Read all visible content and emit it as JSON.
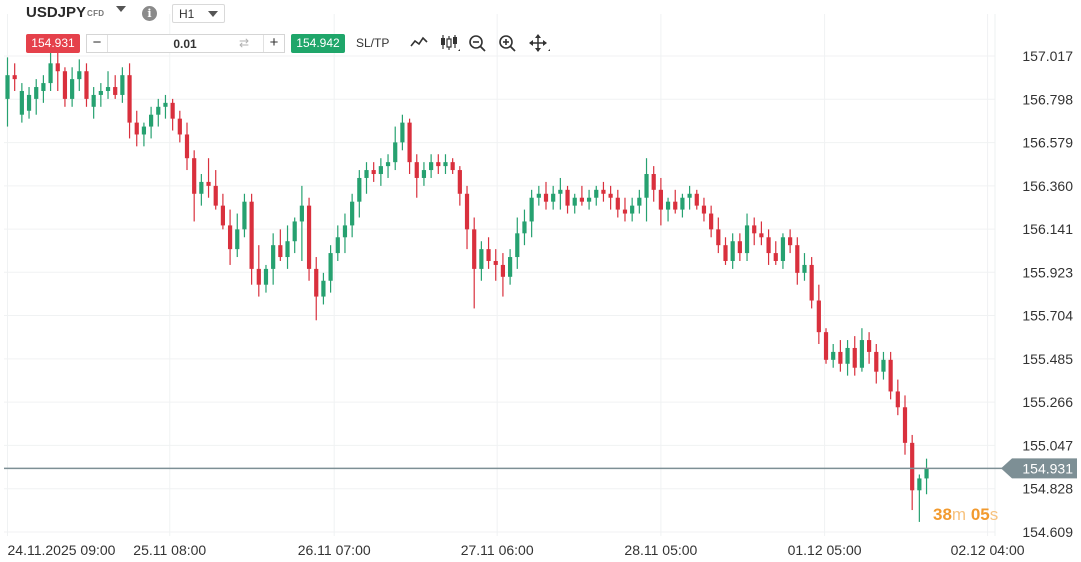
{
  "toolbar": {
    "symbol": "USDJPY",
    "symbol_type": "CFD",
    "timeframe": "H1"
  },
  "trade": {
    "sell_price": "154.931",
    "buy_price": "154.942",
    "quantity": "0.01",
    "minus_label": "−",
    "plus_label": "+",
    "sltp_label": "SL/TP"
  },
  "icons": [
    "chevron-down-icon",
    "info-icon",
    "line-chart-icon",
    "candlestick-icon",
    "zoom-out-icon",
    "zoom-in-icon",
    "move-icon",
    "swap-icon"
  ],
  "colors": {
    "bull": "#26a170",
    "bear": "#d9303d",
    "sell": "#e5414b",
    "buy": "#1fa66a",
    "price_line": "#7d8f95",
    "countdown": "#f29a2e"
  },
  "countdown": {
    "minutes": "38",
    "minutes_unit": "m",
    "seconds": "05",
    "seconds_unit": "s"
  },
  "chart_data": {
    "type": "candlestick",
    "current_price": 154.931,
    "y_ticks": [
      "157.017",
      "156.798",
      "156.579",
      "156.360",
      "156.141",
      "155.923",
      "155.704",
      "155.485",
      "155.266",
      "155.047",
      "154.828",
      "154.609"
    ],
    "x_ticks": [
      "24.11.2025 09:00",
      "25.11 08:00",
      "26.11 07:00",
      "27.11 06:00",
      "28.11 05:00",
      "01.12 05:00",
      "02.12 04:00"
    ],
    "ylim": [
      154.609,
      157.017
    ],
    "grid": true,
    "candles": [
      [
        156.8,
        157.01,
        156.66,
        156.92
      ],
      [
        156.92,
        156.98,
        156.84,
        156.9
      ],
      [
        156.72,
        156.88,
        156.68,
        156.84
      ],
      [
        156.74,
        156.86,
        156.7,
        156.82
      ],
      [
        156.8,
        156.9,
        156.72,
        156.86
      ],
      [
        156.84,
        156.92,
        156.78,
        156.88
      ],
      [
        156.88,
        157.06,
        156.84,
        156.98
      ],
      [
        156.98,
        157.08,
        156.84,
        156.94
      ],
      [
        156.94,
        156.96,
        156.76,
        156.8
      ],
      [
        156.8,
        156.96,
        156.76,
        156.9
      ],
      [
        156.9,
        157.0,
        156.84,
        156.94
      ],
      [
        156.94,
        156.98,
        156.76,
        156.8
      ],
      [
        156.76,
        156.86,
        156.7,
        156.82
      ],
      [
        156.82,
        156.88,
        156.76,
        156.84
      ],
      [
        156.84,
        156.94,
        156.8,
        156.86
      ],
      [
        156.86,
        156.92,
        156.8,
        156.82
      ],
      [
        156.82,
        156.96,
        156.78,
        156.92
      ],
      [
        156.92,
        156.98,
        156.6,
        156.68
      ],
      [
        156.68,
        156.74,
        156.56,
        156.62
      ],
      [
        156.62,
        156.68,
        156.56,
        156.66
      ],
      [
        156.66,
        156.76,
        156.6,
        156.72
      ],
      [
        156.72,
        156.8,
        156.66,
        156.76
      ],
      [
        156.76,
        156.82,
        156.7,
        156.78
      ],
      [
        156.78,
        156.8,
        156.64,
        156.7
      ],
      [
        156.7,
        156.74,
        156.58,
        156.62
      ],
      [
        156.62,
        156.68,
        156.44,
        156.5
      ],
      [
        156.5,
        156.54,
        156.18,
        156.32
      ],
      [
        156.32,
        156.42,
        156.26,
        156.38
      ],
      [
        156.38,
        156.5,
        156.3,
        156.36
      ],
      [
        156.36,
        156.44,
        156.24,
        156.26
      ],
      [
        156.26,
        156.32,
        156.14,
        156.16
      ],
      [
        156.16,
        156.24,
        155.96,
        156.04
      ],
      [
        156.04,
        156.22,
        156.0,
        156.14
      ],
      [
        156.14,
        156.32,
        156.1,
        156.28
      ],
      [
        156.28,
        156.32,
        155.86,
        155.94
      ],
      [
        155.94,
        156.06,
        155.8,
        155.86
      ],
      [
        155.86,
        155.96,
        155.82,
        155.94
      ],
      [
        155.94,
        156.12,
        155.86,
        156.06
      ],
      [
        156.06,
        156.14,
        155.98,
        156.0
      ],
      [
        156.0,
        156.16,
        155.94,
        156.08
      ],
      [
        156.08,
        156.2,
        156.02,
        156.18
      ],
      [
        156.18,
        156.36,
        155.98,
        156.26
      ],
      [
        156.26,
        156.3,
        155.88,
        155.94
      ],
      [
        155.94,
        156.0,
        155.68,
        155.8
      ],
      [
        155.8,
        155.92,
        155.76,
        155.88
      ],
      [
        155.88,
        156.06,
        155.82,
        156.02
      ],
      [
        156.02,
        156.16,
        155.98,
        156.1
      ],
      [
        156.1,
        156.22,
        156.02,
        156.16
      ],
      [
        156.16,
        156.32,
        156.1,
        156.28
      ],
      [
        156.28,
        156.44,
        156.2,
        156.4
      ],
      [
        156.4,
        156.48,
        156.32,
        156.44
      ],
      [
        156.44,
        156.48,
        156.38,
        156.42
      ],
      [
        156.42,
        156.5,
        156.36,
        156.46
      ],
      [
        156.46,
        156.52,
        156.4,
        156.48
      ],
      [
        156.48,
        156.66,
        156.44,
        156.58
      ],
      [
        156.58,
        156.72,
        156.54,
        156.68
      ],
      [
        156.68,
        156.7,
        156.42,
        156.48
      ],
      [
        156.48,
        156.52,
        156.3,
        156.4
      ],
      [
        156.4,
        156.48,
        156.36,
        156.44
      ],
      [
        156.44,
        156.52,
        156.4,
        156.48
      ],
      [
        156.48,
        156.52,
        156.42,
        156.46
      ],
      [
        156.46,
        156.52,
        156.42,
        156.48
      ],
      [
        156.48,
        156.5,
        156.42,
        156.44
      ],
      [
        156.44,
        156.46,
        156.26,
        156.32
      ],
      [
        156.32,
        156.36,
        156.04,
        156.14
      ],
      [
        156.14,
        156.2,
        155.74,
        155.94
      ],
      [
        155.94,
        156.08,
        155.88,
        156.04
      ],
      [
        156.04,
        156.1,
        155.94,
        155.98
      ],
      [
        155.98,
        156.04,
        155.88,
        155.96
      ],
      [
        155.96,
        156.02,
        155.8,
        155.9
      ],
      [
        155.9,
        156.04,
        155.86,
        156.0
      ],
      [
        156.0,
        156.2,
        155.94,
        156.12
      ],
      [
        156.12,
        156.24,
        156.06,
        156.18
      ],
      [
        156.18,
        156.34,
        156.1,
        156.3
      ],
      [
        156.3,
        156.36,
        156.26,
        156.32
      ],
      [
        156.32,
        156.38,
        156.24,
        156.28
      ],
      [
        156.28,
        156.36,
        156.24,
        156.32
      ],
      [
        156.32,
        156.4,
        156.24,
        156.34
      ],
      [
        156.34,
        156.36,
        156.22,
        156.26
      ],
      [
        156.26,
        156.32,
        156.22,
        156.3
      ],
      [
        156.3,
        156.36,
        156.26,
        156.28
      ],
      [
        156.28,
        156.34,
        156.24,
        156.3
      ],
      [
        156.3,
        156.36,
        156.26,
        156.34
      ],
      [
        156.34,
        156.38,
        156.28,
        156.32
      ],
      [
        156.32,
        156.36,
        156.24,
        156.3
      ],
      [
        156.3,
        156.34,
        156.2,
        156.24
      ],
      [
        156.24,
        156.3,
        156.18,
        156.22
      ],
      [
        156.22,
        156.3,
        156.18,
        156.26
      ],
      [
        156.26,
        156.34,
        156.22,
        156.3
      ],
      [
        156.3,
        156.5,
        156.18,
        156.42
      ],
      [
        156.42,
        156.46,
        156.28,
        156.34
      ],
      [
        156.34,
        156.4,
        156.16,
        156.24
      ],
      [
        156.24,
        156.3,
        156.18,
        156.28
      ],
      [
        156.28,
        156.34,
        156.22,
        156.24
      ],
      [
        156.24,
        156.32,
        156.2,
        156.3
      ],
      [
        156.3,
        156.36,
        156.24,
        156.32
      ],
      [
        156.32,
        156.34,
        156.24,
        156.26
      ],
      [
        156.26,
        156.3,
        156.18,
        156.22
      ],
      [
        156.22,
        156.26,
        156.1,
        156.14
      ],
      [
        156.14,
        156.2,
        156.02,
        156.06
      ],
      [
        156.06,
        156.1,
        155.96,
        155.98
      ],
      [
        155.98,
        156.12,
        155.94,
        156.08
      ],
      [
        156.08,
        156.12,
        155.98,
        156.02
      ],
      [
        156.02,
        156.22,
        155.98,
        156.16
      ],
      [
        156.16,
        156.2,
        156.06,
        156.12
      ],
      [
        156.12,
        156.18,
        156.06,
        156.1
      ],
      [
        156.1,
        156.14,
        155.96,
        156.02
      ],
      [
        156.02,
        156.08,
        155.96,
        155.98
      ],
      [
        155.98,
        156.12,
        155.94,
        156.1
      ],
      [
        156.1,
        156.14,
        156.02,
        156.06
      ],
      [
        156.06,
        156.1,
        155.86,
        155.92
      ],
      [
        155.92,
        156.02,
        155.88,
        155.96
      ],
      [
        155.96,
        156.0,
        155.74,
        155.78
      ],
      [
        155.78,
        155.86,
        155.56,
        155.62
      ],
      [
        155.62,
        155.64,
        155.46,
        155.48
      ],
      [
        155.48,
        155.56,
        155.44,
        155.52
      ],
      [
        155.52,
        155.58,
        155.42,
        155.46
      ],
      [
        155.46,
        155.58,
        155.4,
        155.54
      ],
      [
        155.54,
        155.6,
        155.4,
        155.44
      ],
      [
        155.44,
        155.64,
        155.42,
        155.58
      ],
      [
        155.58,
        155.62,
        155.46,
        155.52
      ],
      [
        155.52,
        155.56,
        155.36,
        155.42
      ],
      [
        155.42,
        155.52,
        155.38,
        155.48
      ],
      [
        155.48,
        155.52,
        155.28,
        155.32
      ],
      [
        155.32,
        155.38,
        155.2,
        155.24
      ],
      [
        155.24,
        155.3,
        155.0,
        155.06
      ],
      [
        155.06,
        155.1,
        154.72,
        154.82
      ],
      [
        154.82,
        154.9,
        154.66,
        154.88
      ],
      [
        154.88,
        154.98,
        154.8,
        154.931
      ]
    ]
  }
}
